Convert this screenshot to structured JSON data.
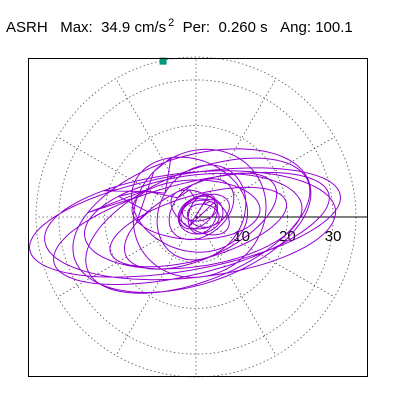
{
  "header": {
    "station": "ASRH",
    "max_label": "Max:",
    "max_value": "34.9",
    "max_unit": "cm/s",
    "max_exponent": "2",
    "per_label": "Per:",
    "per_value": "0.260 s",
    "ang_label": "Ang:",
    "ang_value": "100.1"
  },
  "chart_data": {
    "type": "polar-orbit",
    "radial_ticks": [
      "10",
      "20",
      "30"
    ],
    "radial_values": [
      10,
      20,
      30
    ],
    "radial_max": 35,
    "marker_point": {
      "x": -7.2,
      "y": 34.1
    },
    "colors": {
      "trace": "#9400D3",
      "marker": "#009A7A",
      "grid": "#555555",
      "axis": "#000000"
    }
  }
}
